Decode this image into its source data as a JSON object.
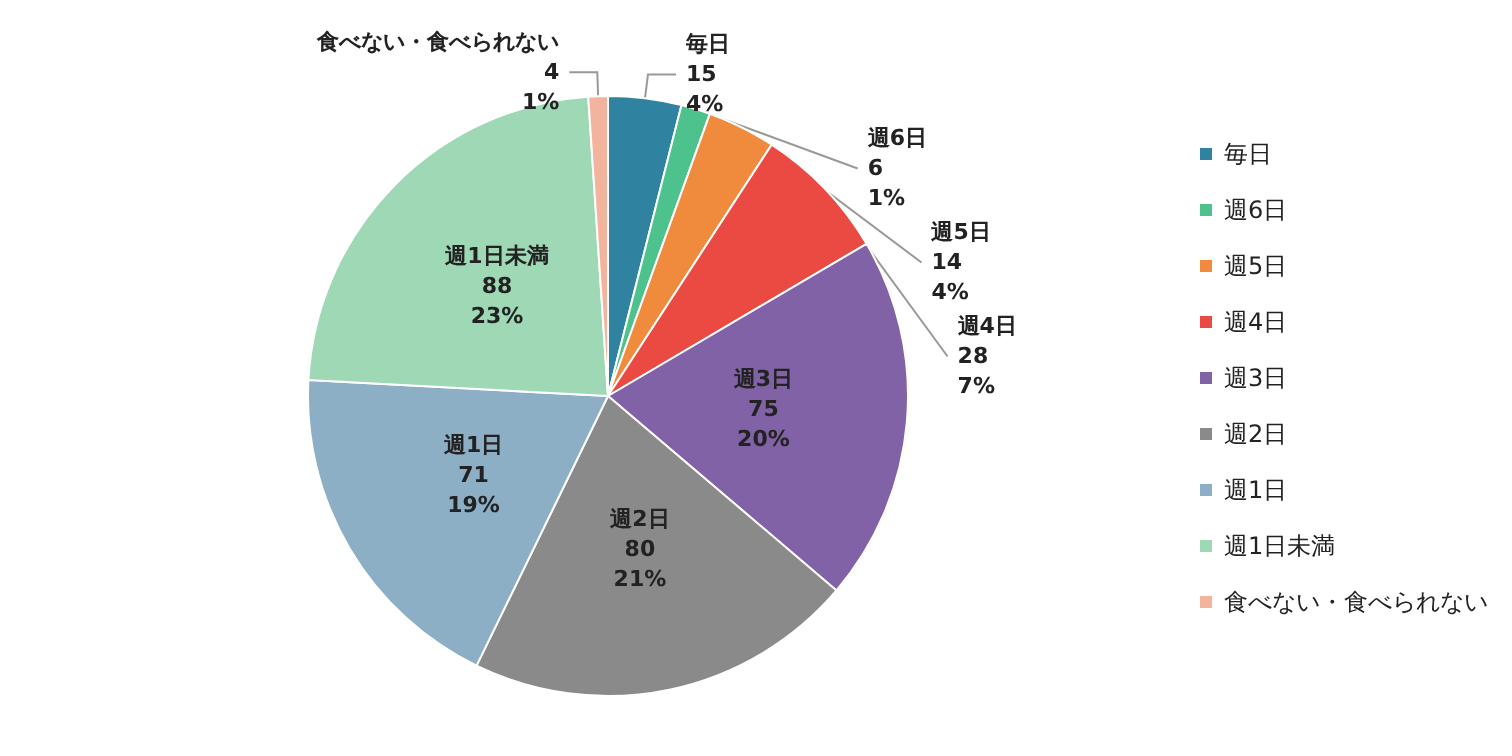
{
  "chart_data": {
    "type": "pie",
    "categories": [
      "毎日",
      "週6日",
      "週5日",
      "週4日",
      "週3日",
      "週2日",
      "週1日",
      "週1日未満",
      "食べない・食べられない"
    ],
    "values": [
      15,
      6,
      14,
      28,
      75,
      80,
      71,
      88,
      4
    ],
    "colors": [
      "#2f82a0",
      "#4dc28c",
      "#f08a3c",
      "#ea4a42",
      "#8262a6",
      "#8a8a8a",
      "#8cafc6",
      "#9ed8b5",
      "#f2b49d"
    ],
    "value_labels": [
      "15\n4%",
      "6\n1%",
      "14\n4%",
      "28\n7%",
      "75\n20%",
      "80\n21%",
      "71\n19%",
      "88\n23%",
      "4\n1%"
    ],
    "legend": "right"
  }
}
